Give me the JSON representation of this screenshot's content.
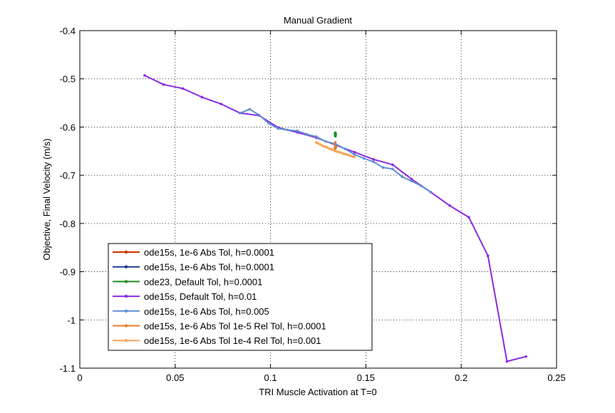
{
  "chart_data": {
    "type": "line",
    "title": "Manual Gradient",
    "xlabel": "TRI Muscle Activation at T=0",
    "ylabel": "Objective, Final Velocity (m/s)",
    "xlim": [
      0,
      0.25
    ],
    "ylim": [
      -1.1,
      -0.4
    ],
    "grid": true,
    "xticks": [
      0,
      0.05,
      0.1,
      0.15,
      0.2,
      0.25
    ],
    "xtick_labels": [
      "0",
      "0.05",
      "0.1",
      "0.15",
      "0.2",
      "0.25"
    ],
    "yticks": [
      -1.1,
      -1,
      -0.9,
      -0.8,
      -0.7,
      -0.6,
      -0.5,
      -0.4
    ],
    "ytick_labels": [
      "-1.1",
      "-1",
      "-0.9",
      "-0.8",
      "-0.7",
      "-0.6",
      "-0.5",
      "-0.4"
    ],
    "legend_position": "bottom-left",
    "series": [
      {
        "name": "ode15s, 1e-6 Abs Tol, h=0.0001",
        "color": "#cc3300",
        "x": [
          0.1339,
          0.134,
          0.1341,
          0.1342
        ],
        "y": [
          -0.642,
          -0.641,
          -0.64,
          -0.641
        ]
      },
      {
        "name": "ode15s, 1e-6 Abs Tol, h=0.0001",
        "color": "#1f3a93",
        "x": [
          0.1339,
          0.134,
          0.1341
        ],
        "y": [
          -0.642,
          -0.643,
          -0.642
        ]
      },
      {
        "name": "ode23, Default Tol, h=0.0001",
        "color": "#228b22",
        "x": [
          0.1338,
          0.1339,
          0.134,
          0.1341,
          0.1342,
          0.134,
          0.1339,
          0.1341
        ],
        "y": [
          -0.613,
          -0.618,
          -0.615,
          -0.619,
          -0.614,
          -0.612,
          -0.616,
          -0.617
        ]
      },
      {
        "name": "ode15s, Default Tol, h=0.01",
        "color": "#8a2be2",
        "x": [
          0.034,
          0.044,
          0.054,
          0.064,
          0.074,
          0.084,
          0.094,
          0.104,
          0.114,
          0.124,
          0.134,
          0.144,
          0.154,
          0.164,
          0.174,
          0.184,
          0.194,
          0.204,
          0.214,
          0.224,
          0.234
        ],
        "y": [
          -0.493,
          -0.512,
          -0.52,
          -0.538,
          -0.552,
          -0.571,
          -0.576,
          -0.601,
          -0.611,
          -0.622,
          -0.637,
          -0.652,
          -0.667,
          -0.678,
          -0.708,
          -0.735,
          -0.763,
          -0.787,
          -0.867,
          -1.086,
          -1.076
        ]
      },
      {
        "name": "ode15s, 1e-6 Abs Tol, h=0.005",
        "color": "#5f8fd6",
        "x": [
          0.084,
          0.089,
          0.094,
          0.099,
          0.104,
          0.109,
          0.114,
          0.119,
          0.124,
          0.129,
          0.134,
          0.139,
          0.144,
          0.149,
          0.154,
          0.159,
          0.164,
          0.169,
          0.174,
          0.179,
          0.184
        ],
        "y": [
          -0.571,
          -0.563,
          -0.575,
          -0.592,
          -0.603,
          -0.606,
          -0.608,
          -0.615,
          -0.62,
          -0.63,
          -0.635,
          -0.645,
          -0.657,
          -0.665,
          -0.672,
          -0.684,
          -0.687,
          -0.703,
          -0.712,
          -0.722,
          -0.735
        ]
      },
      {
        "name": "ode15s, 1e-6 Abs Tol 1e-5 Rel Tol, h=0.0001",
        "color": "#e67e22",
        "x": [
          0.1339,
          0.134,
          0.134,
          0.1341,
          0.1342
        ],
        "y": [
          -0.645,
          -0.641,
          -0.632,
          -0.64,
          -0.643
        ]
      },
      {
        "name": "ode15s, 1e-6 Abs Tol 1e-4 Rel Tol, h=0.001",
        "color": "#f5a65b",
        "x": [
          0.124,
          0.125,
          0.126,
          0.127,
          0.128,
          0.129,
          0.13,
          0.131,
          0.132,
          0.133,
          0.134,
          0.135,
          0.136,
          0.137,
          0.138,
          0.139,
          0.14,
          0.141,
          0.142,
          0.143,
          0.144
        ],
        "y": [
          -0.632,
          -0.634,
          -0.636,
          -0.638,
          -0.64,
          -0.641,
          -0.643,
          -0.645,
          -0.646,
          -0.648,
          -0.65,
          -0.651,
          -0.652,
          -0.653,
          -0.655,
          -0.656,
          -0.657,
          -0.658,
          -0.66,
          -0.661,
          -0.662
        ]
      }
    ]
  }
}
